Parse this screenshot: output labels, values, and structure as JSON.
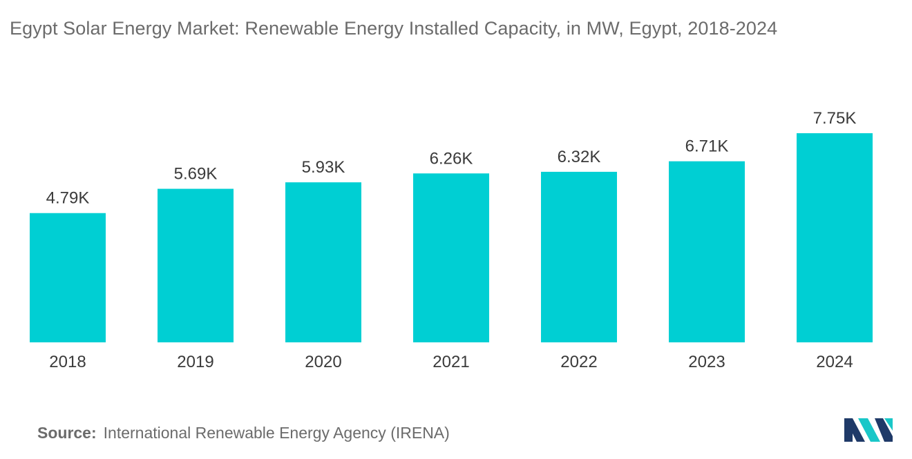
{
  "title": "Egypt Solar Energy Market: Renewable Energy Installed Capacity, in MW, Egypt, 2018-2024",
  "source": {
    "label": "Source:",
    "text": "International Renewable Energy Agency (IRENA)"
  },
  "logo": {
    "icon": "mordor-intelligence-logo-icon",
    "colors": [
      "#1f3a68",
      "#19c7c8"
    ]
  },
  "colors": {
    "bar": "#00cfd3",
    "text": "#3a3a3a",
    "title": "#6b6b6b"
  },
  "chart_data": {
    "type": "bar",
    "title": "Egypt Solar Energy Market: Renewable Energy Installed Capacity, in MW, Egypt, 2018-2024",
    "xlabel": "",
    "ylabel": "",
    "categories": [
      "2018",
      "2019",
      "2020",
      "2021",
      "2022",
      "2023",
      "2024"
    ],
    "values": [
      4790,
      5690,
      5930,
      6260,
      6320,
      6710,
      7750
    ],
    "data_labels": [
      "4.79K",
      "5.69K",
      "5.93K",
      "6.26K",
      "6.32K",
      "6.71K",
      "7.75K"
    ],
    "ylim": [
      0,
      7750
    ],
    "grid": false,
    "legend": "none"
  }
}
